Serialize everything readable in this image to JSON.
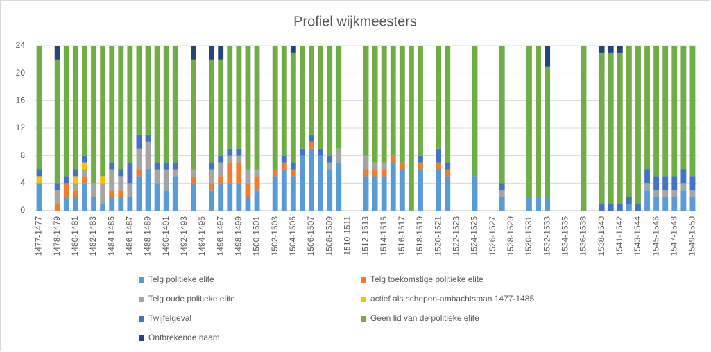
{
  "chart_data": {
    "type": "stacked_bar",
    "title": "Profiel wijkmeesters",
    "categories": [
      "1477-1477",
      null,
      "1478-1479",
      null,
      "1480-1481",
      null,
      "1482-1483",
      null,
      "1484-1485",
      null,
      "1486-1487",
      null,
      "1488-1489",
      null,
      "1490-1491",
      null,
      "1492-1493",
      null,
      "1494-1495",
      null,
      "1496-1497",
      null,
      "1498-1499",
      null,
      "1500-1501",
      null,
      "1502-1503",
      null,
      "1504-1505",
      null,
      "1506-1507",
      null,
      "1508-1509",
      null,
      "1510-1511",
      null,
      "1512-1513",
      null,
      "1514-1515",
      null,
      "1516-1517",
      null,
      "1518-1519",
      null,
      "1520-1521",
      null,
      "1522-1523",
      null,
      "1524-1525",
      null,
      "1526-1527",
      null,
      "1528-1529",
      null,
      "1530-1531",
      null,
      "1532-1533",
      null,
      "1534-1535",
      null,
      "1536-1538",
      null,
      "1538-1540",
      null,
      "1541-1542",
      null,
      "1543-1544",
      null,
      "1545-1546",
      null,
      "1547-1548",
      null,
      "1549-1550"
    ],
    "series": [
      {
        "name": "Telg politieke elite",
        "color": "#5b9bd5",
        "values": [
          4,
          0,
          0,
          2,
          2,
          4,
          2,
          1,
          2,
          2,
          2,
          5,
          6,
          4,
          3,
          5,
          0,
          4,
          0,
          3,
          4,
          4,
          4,
          2,
          3,
          0,
          5,
          6,
          5,
          8,
          9,
          8,
          6,
          7,
          0,
          0,
          5,
          5,
          5,
          7,
          6,
          0,
          6,
          0,
          6,
          5,
          0,
          0,
          5,
          0,
          0,
          2,
          0,
          0,
          2,
          2,
          2,
          0,
          0,
          0,
          0,
          0,
          0,
          0,
          0,
          1,
          0,
          3,
          2,
          2,
          2,
          3,
          2
        ]
      },
      {
        "name": "Telg toekomstige politieke elite",
        "color": "#ed7d31",
        "values": [
          0,
          0,
          1,
          2,
          1,
          1,
          0,
          0,
          1,
          1,
          0,
          1,
          0,
          0,
          0,
          0,
          0,
          1,
          0,
          1,
          1,
          3,
          3,
          2,
          2,
          0,
          1,
          1,
          1,
          0,
          1,
          0,
          0,
          0,
          0,
          0,
          1,
          1,
          1,
          1,
          1,
          0,
          1,
          0,
          1,
          1,
          0,
          0,
          0,
          0,
          0,
          0,
          0,
          0,
          0,
          0,
          0,
          0,
          0,
          0,
          0,
          0,
          0,
          0,
          0,
          0,
          0,
          0,
          0,
          0,
          0,
          0,
          0
        ]
      },
      {
        "name": "Telg oude politieke elite",
        "color": "#a5a5a5",
        "values": [
          0,
          0,
          2,
          0,
          1,
          1,
          2,
          3,
          3,
          2,
          2,
          3,
          4,
          2,
          3,
          1,
          0,
          1,
          0,
          2,
          2,
          1,
          1,
          2,
          1,
          0,
          0,
          0,
          0,
          0,
          0,
          0,
          1,
          2,
          0,
          0,
          2,
          1,
          1,
          0,
          0,
          0,
          0,
          0,
          0,
          0,
          0,
          0,
          0,
          0,
          0,
          1,
          0,
          0,
          0,
          0,
          0,
          0,
          0,
          0,
          0,
          0,
          0,
          0,
          0,
          0,
          0,
          1,
          1,
          1,
          1,
          1,
          1
        ]
      },
      {
        "name": "actief als schepen-ambachtsman 1477-1485",
        "color": "#ffc000",
        "values": [
          1,
          0,
          0,
          0,
          1,
          1,
          0,
          1,
          0,
          0,
          0,
          0,
          0,
          0,
          0,
          0,
          0,
          0,
          0,
          0,
          0,
          0,
          0,
          0,
          0,
          0,
          0,
          0,
          0,
          0,
          0,
          0,
          0,
          0,
          0,
          0,
          0,
          0,
          0,
          0,
          0,
          0,
          0,
          0,
          0,
          0,
          0,
          0,
          0,
          0,
          0,
          0,
          0,
          0,
          0,
          0,
          0,
          0,
          0,
          0,
          0,
          0,
          0,
          0,
          0,
          0,
          0,
          0,
          0,
          0,
          0,
          0,
          0
        ]
      },
      {
        "name": "Twijfelgeval",
        "color": "#4472c4",
        "values": [
          1,
          0,
          1,
          1,
          1,
          1,
          0,
          0,
          1,
          1,
          3,
          2,
          1,
          1,
          1,
          1,
          0,
          0,
          0,
          1,
          1,
          1,
          1,
          0,
          0,
          0,
          0,
          1,
          1,
          1,
          1,
          1,
          1,
          0,
          0,
          0,
          0,
          0,
          0,
          0,
          0,
          0,
          1,
          0,
          2,
          1,
          0,
          0,
          0,
          0,
          0,
          1,
          0,
          0,
          0,
          0,
          0,
          0,
          0,
          0,
          0,
          0,
          1,
          1,
          1,
          1,
          1,
          2,
          2,
          2,
          2,
          2,
          2
        ]
      },
      {
        "name": "Geen lid van de politieke elite",
        "color": "#70ad47",
        "values": [
          18,
          0,
          18,
          19,
          18,
          16,
          20,
          19,
          17,
          18,
          17,
          13,
          13,
          17,
          17,
          17,
          0,
          16,
          0,
          15,
          14,
          15,
          15,
          18,
          18,
          0,
          18,
          16,
          16,
          15,
          13,
          15,
          16,
          15,
          0,
          0,
          16,
          17,
          17,
          16,
          17,
          24,
          16,
          0,
          15,
          17,
          0,
          0,
          19,
          0,
          0,
          20,
          0,
          0,
          22,
          22,
          19,
          0,
          0,
          0,
          24,
          0,
          22,
          22,
          22,
          22,
          23,
          18,
          19,
          19,
          19,
          18,
          19
        ]
      },
      {
        "name": "Ontbrekende naam",
        "color": "#264478",
        "values": [
          0,
          0,
          2,
          0,
          0,
          0,
          0,
          0,
          0,
          0,
          0,
          0,
          0,
          0,
          0,
          0,
          0,
          2,
          0,
          2,
          2,
          0,
          0,
          0,
          0,
          0,
          0,
          0,
          1,
          0,
          0,
          0,
          0,
          0,
          0,
          0,
          0,
          0,
          0,
          0,
          0,
          0,
          0,
          0,
          0,
          0,
          0,
          0,
          0,
          0,
          0,
          0,
          0,
          0,
          0,
          0,
          3,
          0,
          0,
          0,
          0,
          0,
          1,
          1,
          1,
          0,
          0,
          0,
          0,
          0,
          0,
          0,
          0
        ]
      }
    ],
    "ylim": [
      0,
      24
    ],
    "yticks": [
      0,
      4,
      8,
      12,
      16,
      20,
      24
    ],
    "grid": true,
    "legend": "bottom"
  }
}
